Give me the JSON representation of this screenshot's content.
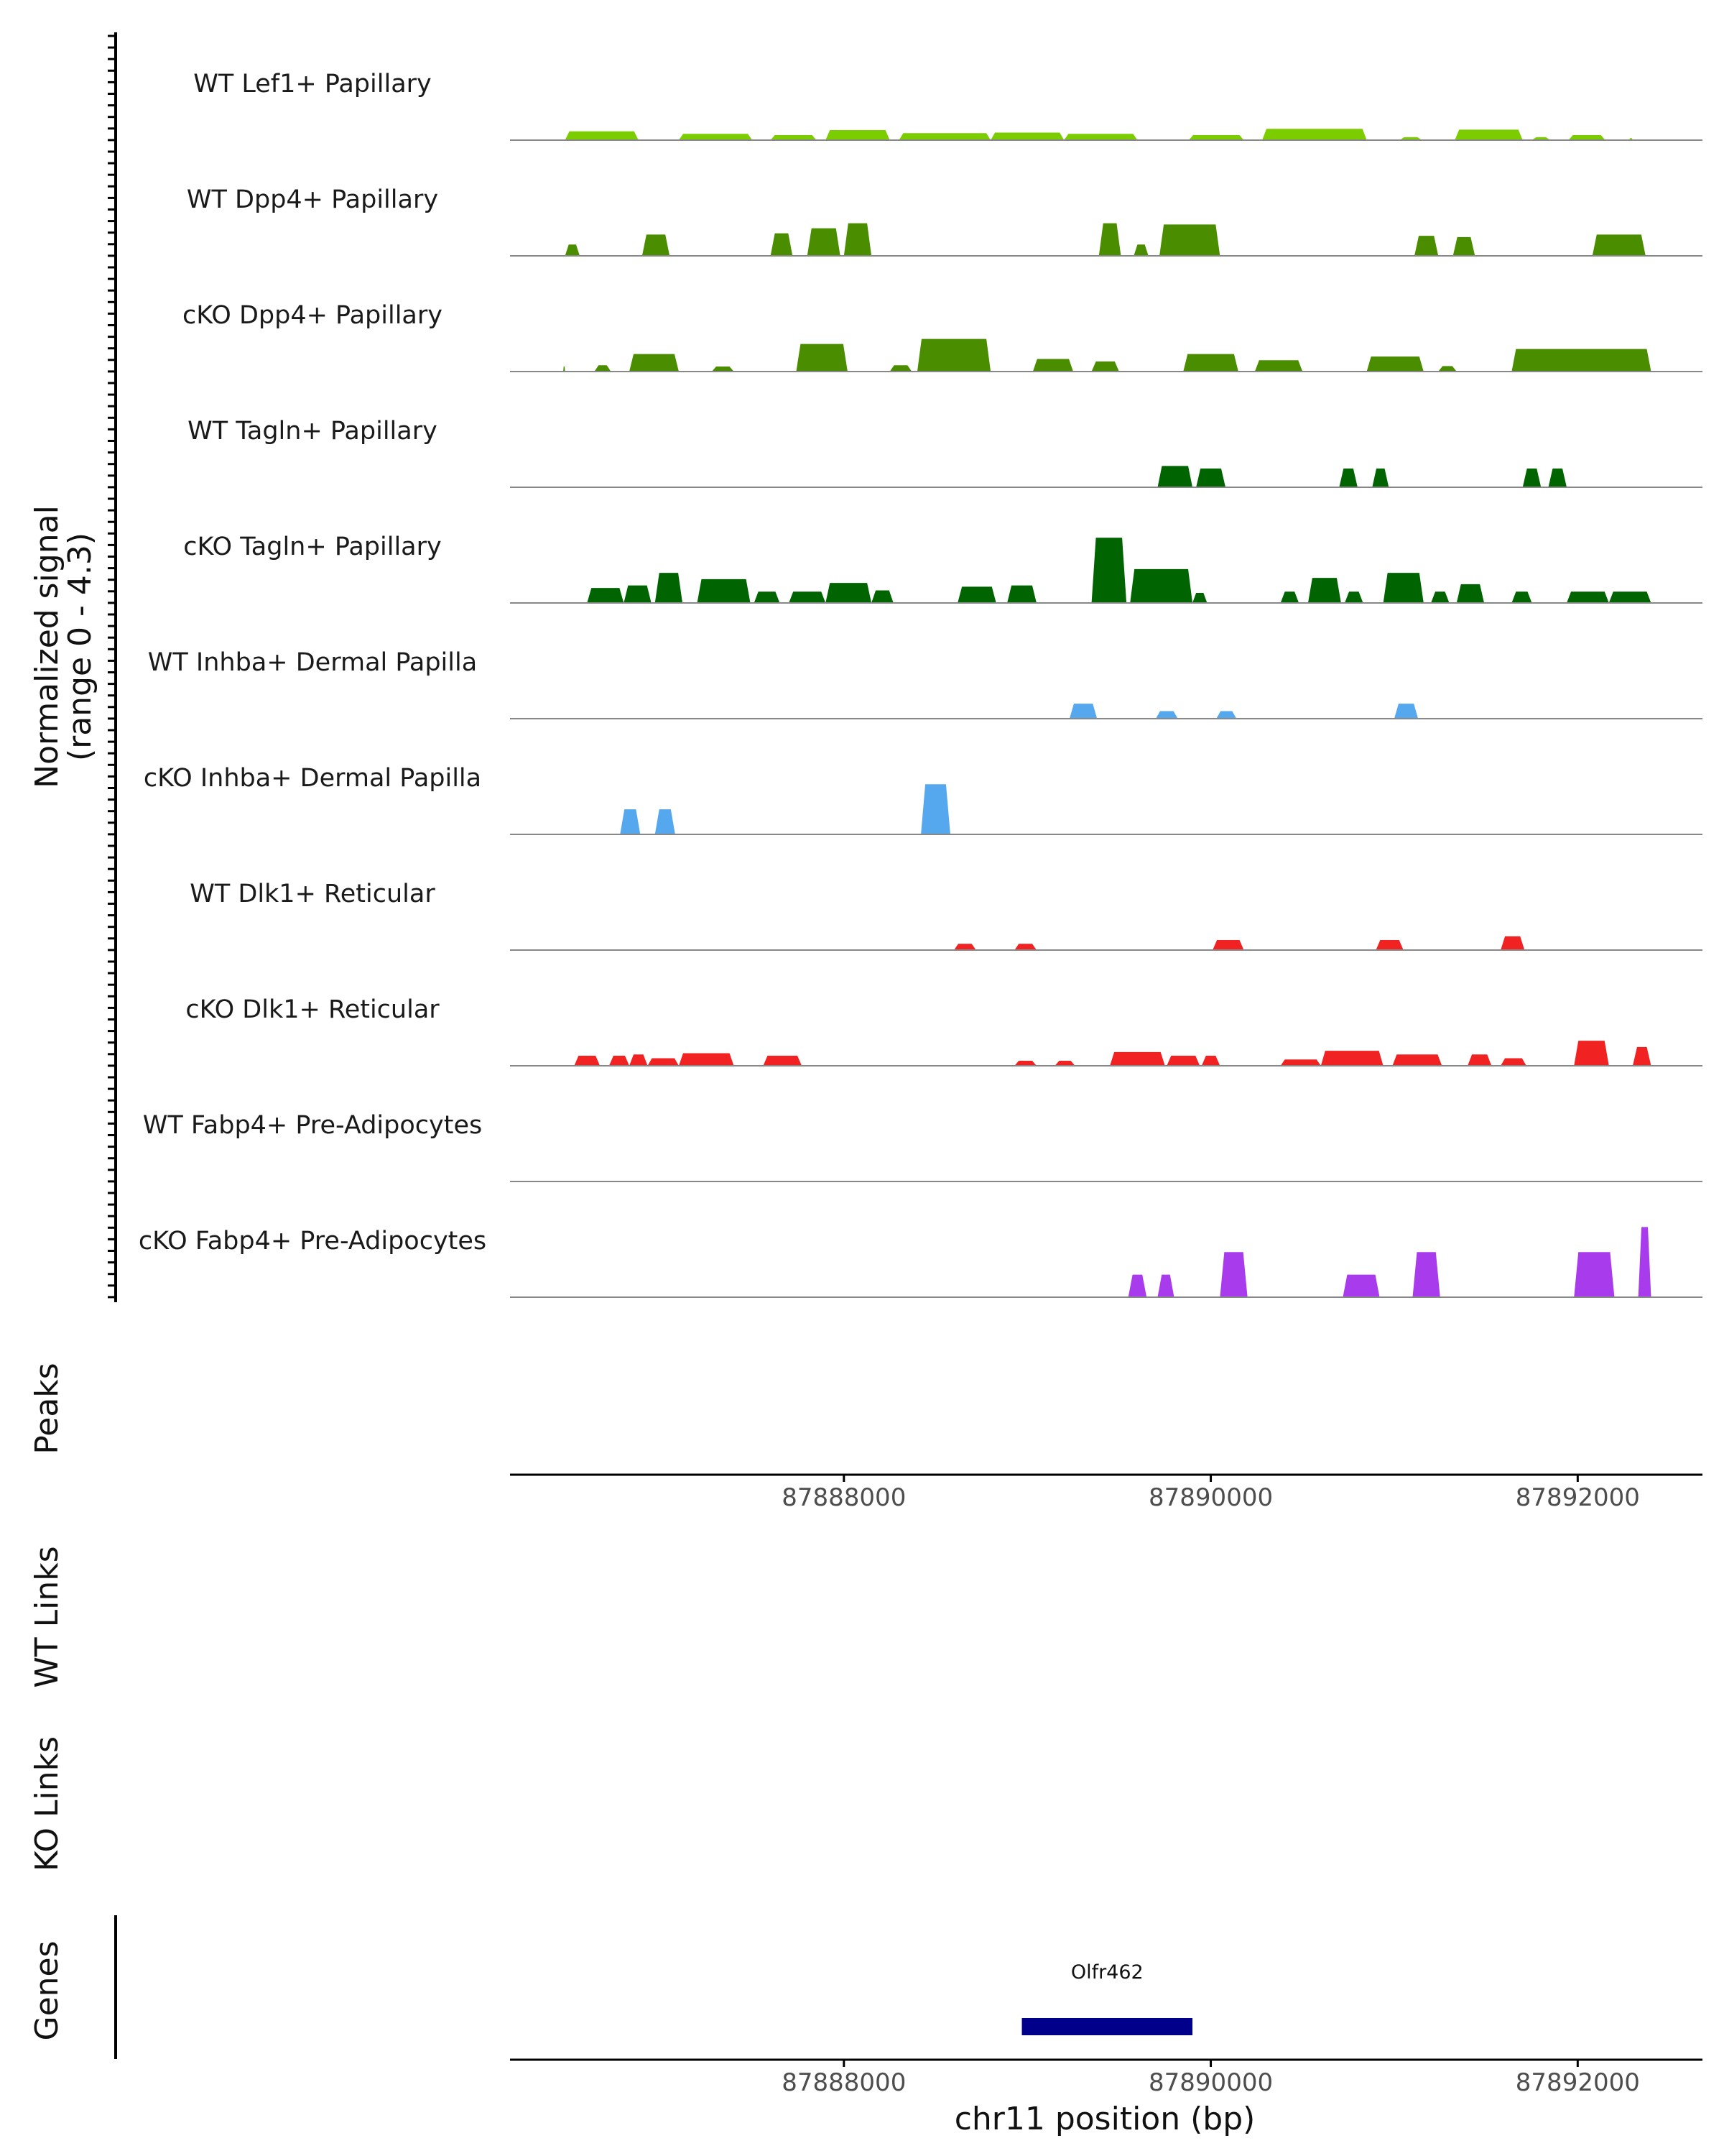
{
  "chart_data": {
    "type": "area",
    "chromosome": "chr11",
    "xlabel": "chr11 position (bp)",
    "ylabel_line1": "Normalized signal",
    "ylabel_line2": "(range 0 - 4.3)",
    "ylim": [
      0,
      4.3
    ],
    "xlim": [
      87886180,
      87892680
    ],
    "x_ticks": [
      87888000,
      87890000,
      87892000
    ],
    "x_tick_labels": [
      "87888000",
      "87890000",
      "87892000"
    ],
    "panel_labels": {
      "peaks": "Peaks",
      "wt_links": "WT Links",
      "ko_links": "KO Links",
      "genes": "Genes"
    },
    "genes": [
      {
        "name": "Olfr462",
        "start": 87888970,
        "end": 87889900,
        "color": "#00008b"
      }
    ],
    "tracks": [
      {
        "label": "WT Lef1+ Papillary",
        "color": "#7ccd00",
        "regions": [
          [
            87886480,
            87886880,
            0.35
          ],
          [
            87887100,
            87887500,
            0.25
          ],
          [
            87887600,
            87887850,
            0.2
          ],
          [
            87887900,
            87888250,
            0.4
          ],
          [
            87888300,
            87888800,
            0.28
          ],
          [
            87888800,
            87889200,
            0.3
          ],
          [
            87889200,
            87889600,
            0.25
          ],
          [
            87889880,
            87890180,
            0.2
          ],
          [
            87890280,
            87890850,
            0.45
          ],
          [
            87891030,
            87891150,
            0.12
          ],
          [
            87891330,
            87891700,
            0.42
          ],
          [
            87891750,
            87891850,
            0.12
          ],
          [
            87891950,
            87892150,
            0.2
          ],
          [
            87892280,
            87892300,
            0.08
          ]
        ]
      },
      {
        "label": "WT Dpp4+ Papillary",
        "color": "#4a8e00",
        "regions": [
          [
            87886480,
            87886560,
            0.45
          ],
          [
            87886900,
            87887050,
            0.85
          ],
          [
            87887600,
            87887720,
            0.9
          ],
          [
            87887800,
            87887980,
            1.1
          ],
          [
            87888000,
            87888150,
            1.3
          ],
          [
            87889390,
            87889510,
            1.3
          ],
          [
            87889580,
            87889660,
            0.45
          ],
          [
            87889720,
            87890050,
            1.25
          ],
          [
            87891110,
            87891240,
            0.8
          ],
          [
            87891320,
            87891440,
            0.75
          ],
          [
            87892080,
            87892370,
            0.85
          ]
        ]
      },
      {
        "label": "cKO Dpp4+ Papillary",
        "color": "#4a8e00",
        "regions": [
          [
            87886470,
            87886480,
            0.2
          ],
          [
            87886640,
            87886730,
            0.25
          ],
          [
            87886830,
            87887100,
            0.7
          ],
          [
            87887280,
            87887400,
            0.2
          ],
          [
            87887740,
            87888020,
            1.1
          ],
          [
            87888250,
            87888370,
            0.25
          ],
          [
            87888400,
            87888800,
            1.3
          ],
          [
            87889030,
            87889250,
            0.5
          ],
          [
            87889350,
            87889500,
            0.4
          ],
          [
            87889850,
            87890150,
            0.7
          ],
          [
            87890240,
            87890500,
            0.45
          ],
          [
            87890850,
            87891160,
            0.6
          ],
          [
            87891240,
            87891340,
            0.22
          ],
          [
            87891640,
            87892400,
            0.9
          ]
        ]
      },
      {
        "label": "WT Tagln+ Papillary",
        "color": "#006400",
        "regions": [
          [
            87889710,
            87889900,
            0.85
          ],
          [
            87889920,
            87890080,
            0.75
          ],
          [
            87890700,
            87890800,
            0.75
          ],
          [
            87890880,
            87890970,
            0.75
          ],
          [
            87891700,
            87891800,
            0.75
          ],
          [
            87891840,
            87891940,
            0.75
          ]
        ]
      },
      {
        "label": "cKO Tagln+ Papillary",
        "color": "#006400",
        "regions": [
          [
            87886600,
            87886800,
            0.6
          ],
          [
            87886800,
            87886950,
            0.7
          ],
          [
            87886970,
            87887120,
            1.2
          ],
          [
            87887200,
            87887490,
            0.95
          ],
          [
            87887510,
            87887650,
            0.45
          ],
          [
            87887700,
            87887900,
            0.45
          ],
          [
            87887900,
            87888150,
            0.8
          ],
          [
            87888150,
            87888270,
            0.5
          ],
          [
            87888620,
            87888830,
            0.65
          ],
          [
            87888890,
            87889050,
            0.7
          ],
          [
            87889350,
            87889540,
            2.6
          ],
          [
            87889560,
            87889900,
            1.35
          ],
          [
            87889900,
            87889980,
            0.4
          ],
          [
            87890380,
            87890480,
            0.45
          ],
          [
            87890530,
            87890710,
            1.0
          ],
          [
            87890730,
            87890830,
            0.45
          ],
          [
            87890940,
            87891160,
            1.2
          ],
          [
            87891200,
            87891300,
            0.45
          ],
          [
            87891340,
            87891490,
            0.75
          ],
          [
            87891640,
            87891750,
            0.45
          ],
          [
            87891940,
            87892170,
            0.45
          ],
          [
            87892170,
            87892400,
            0.45
          ]
        ]
      },
      {
        "label": "WT Inhba+ Dermal Papilla",
        "color": "#56a8ee",
        "regions": [
          [
            87889230,
            87889380,
            0.6
          ],
          [
            87889700,
            87889820,
            0.3
          ],
          [
            87890030,
            87890140,
            0.3
          ],
          [
            87891000,
            87891130,
            0.6
          ]
        ]
      },
      {
        "label": "cKO Inhba+ Dermal Papilla",
        "color": "#56a8ee",
        "regions": [
          [
            87886780,
            87886890,
            1.0
          ],
          [
            87886970,
            87887080,
            1.0
          ],
          [
            87888420,
            87888580,
            2.0
          ]
        ]
      },
      {
        "label": "WT Dlk1+ Reticular",
        "color": "#f02222",
        "regions": [
          [
            87888600,
            87888720,
            0.25
          ],
          [
            87888930,
            87889050,
            0.25
          ],
          [
            87890010,
            87890180,
            0.4
          ],
          [
            87890900,
            87891050,
            0.4
          ],
          [
            87891580,
            87891710,
            0.55
          ]
        ]
      },
      {
        "label": "cKO Dlk1+ Reticular",
        "color": "#f02222",
        "regions": [
          [
            87886530,
            87886670,
            0.4
          ],
          [
            87886720,
            87886830,
            0.4
          ],
          [
            87886830,
            87886930,
            0.45
          ],
          [
            87886930,
            87887100,
            0.3
          ],
          [
            87887100,
            87887400,
            0.5
          ],
          [
            87887560,
            87887770,
            0.4
          ],
          [
            87888930,
            87889050,
            0.2
          ],
          [
            87889150,
            87889260,
            0.2
          ],
          [
            87889450,
            87889750,
            0.55
          ],
          [
            87889760,
            87889940,
            0.4
          ],
          [
            87889950,
            87890050,
            0.4
          ],
          [
            87890380,
            87890600,
            0.25
          ],
          [
            87890600,
            87890940,
            0.6
          ],
          [
            87890990,
            87891260,
            0.45
          ],
          [
            87891400,
            87891530,
            0.45
          ],
          [
            87891580,
            87891720,
            0.3
          ],
          [
            87891980,
            87892170,
            1.0
          ],
          [
            87892300,
            87892400,
            0.75
          ]
        ]
      },
      {
        "label": "WT Fabp4+ Pre-Adipocytes",
        "color": "#a83ced",
        "regions": []
      },
      {
        "label": "cKO Fabp4+ Pre-Adipocytes",
        "color": "#a83ced",
        "regions": [
          [
            87889550,
            87889650,
            0.9
          ],
          [
            87889710,
            87889800,
            0.9
          ],
          [
            87890050,
            87890200,
            1.8
          ],
          [
            87890720,
            87890920,
            0.9
          ],
          [
            87891100,
            87891250,
            1.8
          ],
          [
            87891980,
            87892200,
            1.8
          ],
          [
            87892330,
            87892400,
            2.8
          ]
        ]
      }
    ]
  }
}
